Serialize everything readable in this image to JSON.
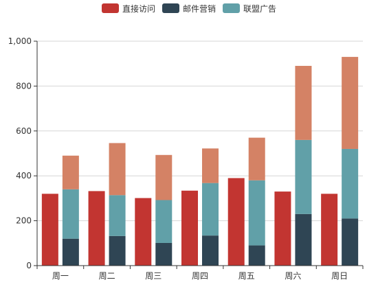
{
  "chart_data": {
    "type": "bar",
    "categories": [
      "周一",
      "周二",
      "周三",
      "周四",
      "周五",
      "周六",
      "周日"
    ],
    "series": [
      {
        "name": "直接访问",
        "stack": null,
        "color": "#c23531",
        "values": [
          320,
          332,
          301,
          334,
          390,
          330,
          320
        ]
      },
      {
        "name": "邮件营销",
        "stack": "广告",
        "color": "#2f4554",
        "values": [
          120,
          132,
          101,
          134,
          90,
          230,
          210
        ]
      },
      {
        "name": "联盟广告",
        "stack": "广告",
        "color": "#61a0a8",
        "values": [
          220,
          182,
          191,
          234,
          290,
          330,
          310
        ]
      },
      {
        "name": "",
        "stack": "广告",
        "color": "#d48265",
        "values": [
          150,
          232,
          201,
          154,
          190,
          330,
          410
        ]
      }
    ],
    "legend": [
      "直接访问",
      "邮件营销",
      "联盟广告"
    ],
    "legend_position": "top-center",
    "ylim": [
      0,
      1000
    ],
    "yticks": [
      0,
      200,
      400,
      600,
      800,
      1000
    ],
    "ytick_labels": [
      "0",
      "200",
      "400",
      "600",
      "800",
      "1,000"
    ],
    "grid": true,
    "xlabel": "",
    "ylabel": "",
    "title": ""
  }
}
